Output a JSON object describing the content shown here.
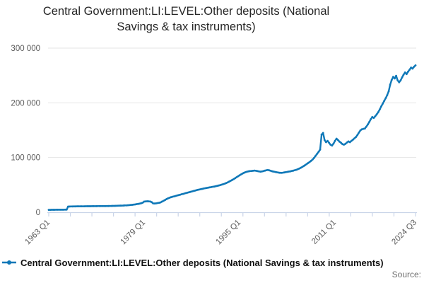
{
  "title_lines": [
    "Central Government:LI:LEVEL:Other deposits (National",
    "Savings & tax instruments)"
  ],
  "legend": {
    "label": "Central Government:LI:LEVEL:Other deposits (National Savings & tax instruments)"
  },
  "source_label": "Source:",
  "colors": {
    "series_line": "#0f78b8",
    "gridline": "#e6e6e6",
    "axis_line": "#c9d4e8",
    "tick_label": "#5a5a5a",
    "title_text": "#262626",
    "legend_text": "#111111",
    "source_text": "#6e6e6e"
  },
  "chart_data": {
    "type": "line",
    "title": "Central Government:LI:LEVEL:Other deposits (National Savings & tax instruments)",
    "series_name": "Central Government:LI:LEVEL:Other deposits (National Savings & tax instruments)",
    "x_unit": "quarter",
    "period_start": "1963 Q1",
    "period_end": "2024 Q3",
    "xlabel": "",
    "ylabel": "",
    "ylim": [
      0,
      300000
    ],
    "grid": "horizontal-only",
    "legend_position": "bottom-left",
    "y_ticks": [
      {
        "label": "0",
        "value": 0
      },
      {
        "label": "100 000",
        "value": 100000
      },
      {
        "label": "200 000",
        "value": 200000
      },
      {
        "label": "300 000",
        "value": 300000
      }
    ],
    "x_tick_labels": [
      {
        "label": "1963 Q1",
        "quarter_index": 0
      },
      {
        "label": "1979 Q1",
        "quarter_index": 64
      },
      {
        "label": "1995 Q1",
        "quarter_index": 128
      },
      {
        "label": "2011 Q1",
        "quarter_index": 192
      },
      {
        "label": "2024 Q3",
        "quarter_index": 246
      }
    ],
    "minor_tick_count": 18,
    "values": [
      4400,
      4400,
      4500,
      4500,
      4500,
      4600,
      4600,
      4600,
      4700,
      4700,
      4700,
      4800,
      4800,
      10400,
      10500,
      10600,
      10600,
      10700,
      10700,
      10800,
      10800,
      10800,
      10900,
      10900,
      10900,
      11000,
      11000,
      11000,
      11000,
      11100,
      11100,
      11100,
      11100,
      11200,
      11200,
      11200,
      11200,
      11300,
      11300,
      11400,
      11400,
      11500,
      11500,
      11600,
      11700,
      11800,
      11900,
      12000,
      12100,
      12200,
      12300,
      12500,
      12600,
      12800,
      13000,
      13300,
      13600,
      14000,
      14400,
      14900,
      15300,
      15800,
      16500,
      17500,
      19500,
      19800,
      20000,
      19900,
      19700,
      18500,
      16200,
      16000,
      16300,
      16800,
      17300,
      18000,
      19500,
      21000,
      22500,
      24000,
      25500,
      26500,
      27500,
      28300,
      29000,
      29800,
      30500,
      31300,
      32000,
      32800,
      33500,
      34300,
      35000,
      35800,
      36500,
      37300,
      38000,
      38800,
      39500,
      40300,
      41000,
      41600,
      42200,
      42800,
      43400,
      44000,
      44500,
      45000,
      45500,
      46000,
      46500,
      47000,
      47600,
      48200,
      48900,
      49600,
      50400,
      51300,
      52300,
      53400,
      54600,
      56000,
      57500,
      59000,
      60500,
      62200,
      64000,
      65800,
      67500,
      69200,
      70800,
      72200,
      73300,
      74200,
      74800,
      75200,
      75400,
      75800,
      76200,
      75800,
      75200,
      74600,
      74200,
      74600,
      75200,
      76000,
      76800,
      77200,
      76500,
      75600,
      74800,
      74200,
      73600,
      73000,
      72600,
      72200,
      72000,
      72300,
      72800,
      73300,
      73800,
      74300,
      74800,
      75400,
      76000,
      76800,
      77600,
      78600,
      79800,
      81200,
      82800,
      84500,
      86200,
      88000,
      90000,
      92000,
      94000,
      96500,
      99500,
      103000,
      107000,
      110500,
      114500,
      142000,
      145000,
      132000,
      128000,
      130500,
      127000,
      123500,
      122000,
      125500,
      130500,
      134500,
      132000,
      129000,
      127000,
      124500,
      123500,
      125000,
      127500,
      129500,
      128000,
      130500,
      132500,
      135000,
      137500,
      141000,
      145500,
      149500,
      151500,
      152500,
      153000,
      156500,
      160500,
      165000,
      170000,
      174000,
      172500,
      175500,
      179000,
      183000,
      188000,
      193500,
      198500,
      203500,
      208500,
      214000,
      221000,
      233000,
      241500,
      247500,
      244500,
      249500,
      241000,
      237500,
      241000,
      246500,
      251500,
      255500,
      252500,
      257000,
      260500,
      264500,
      262500,
      266000,
      268500
    ]
  }
}
